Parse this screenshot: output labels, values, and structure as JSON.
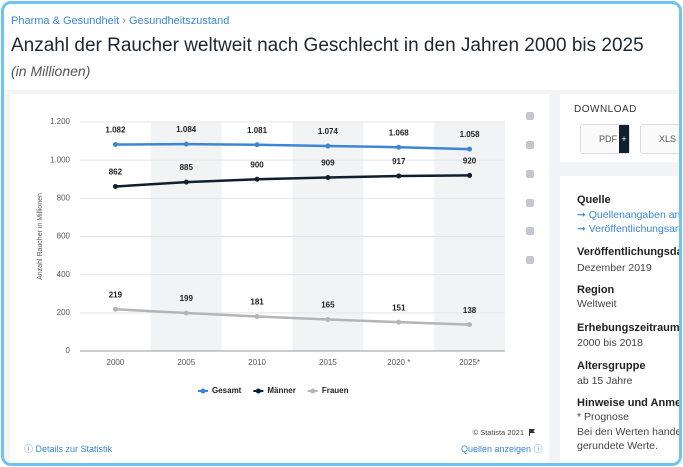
{
  "breadcrumb": [
    "Pharma & Gesundheit",
    "Gesundheitszustand"
  ],
  "title": "Anzahl der Raucher weltweit nach Geschlecht in den Jahren 2000 bis 2025",
  "subtitle": "(in Millionen)",
  "chart_data": {
    "type": "line",
    "y_label": "Anzahl Raucher in Millionen",
    "categories": [
      "2000",
      "2005",
      "2010",
      "2015",
      "2020 *",
      "2025*"
    ],
    "series": [
      {
        "name": "Gesamt",
        "color": "#3b86d6",
        "values": [
          1082,
          1084,
          1081,
          1074,
          1068,
          1058
        ],
        "value_labels": [
          "1.082",
          "1.084",
          "1.081",
          "1.074",
          "1.068",
          "1.058"
        ]
      },
      {
        "name": "Männer",
        "color": "#0f1f30",
        "values": [
          862,
          885,
          900,
          909,
          917,
          920
        ]
      },
      {
        "name": "Frauen",
        "color": "#b5b5b5",
        "values": [
          219,
          199,
          181,
          165,
          151,
          138
        ]
      }
    ],
    "ylim": [
      0,
      1200
    ],
    "yticks": [
      0,
      200,
      400,
      600,
      800,
      {
        "value": 1000,
        "label": "1.000"
      },
      {
        "value": 1200,
        "label": "1.200"
      }
    ],
    "grid": true,
    "credit": "© Statista 2021"
  },
  "links": {
    "details": "Details zur Statistik",
    "sources": "Quellen anzeigen"
  },
  "download": {
    "title": "DOWNLOAD",
    "buttons": [
      "PDF",
      "XLS"
    ]
  },
  "info": [
    {
      "heading": "Quelle",
      "lines": [
        "Quellenangaben anze",
        "Veröffentlichungsang"
      ]
    },
    {
      "heading": "Veröffentlichungsda",
      "lines": [
        "Dezember 2019"
      ]
    },
    {
      "heading": "Region",
      "lines": [
        "Weltweit"
      ]
    },
    {
      "heading": "Erhebungszeitraum",
      "lines": [
        "2000 bis 2018"
      ]
    },
    {
      "heading": "Altersgruppe",
      "lines": [
        "ab 15 Jahre"
      ]
    },
    {
      "heading": "Hinweise und Anmer",
      "lines": [
        "* Prognose",
        "Bei den Werten handelt",
        "gerundete Werte."
      ]
    }
  ]
}
